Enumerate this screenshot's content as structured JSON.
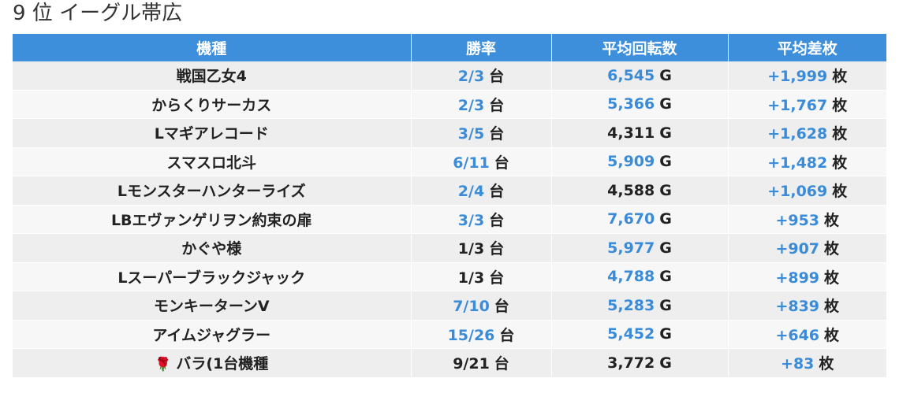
{
  "title": "9 位 イーグル帯広",
  "headers": [
    "機種",
    "勝率",
    "平均回転数",
    "平均差枚"
  ],
  "units": {
    "rate": "台",
    "spins": "G",
    "diff": "枚"
  },
  "rows": [
    {
      "machine": "戦国乙女4",
      "rate": "2/3",
      "rate_blue": true,
      "spins": "6,545",
      "spins_blue": true,
      "diff": "+1,999",
      "diff_blue": true
    },
    {
      "machine": "からくりサーカス",
      "rate": "2/3",
      "rate_blue": true,
      "spins": "5,366",
      "spins_blue": true,
      "diff": "+1,767",
      "diff_blue": true
    },
    {
      "machine": "Lマギアレコード",
      "rate": "3/5",
      "rate_blue": true,
      "spins": "4,311",
      "spins_blue": false,
      "diff": "+1,628",
      "diff_blue": true
    },
    {
      "machine": "スマスロ北斗",
      "rate": "6/11",
      "rate_blue": true,
      "spins": "5,909",
      "spins_blue": true,
      "diff": "+1,482",
      "diff_blue": true
    },
    {
      "machine": "Lモンスターハンターライズ",
      "rate": "2/4",
      "rate_blue": true,
      "spins": "4,588",
      "spins_blue": false,
      "diff": "+1,069",
      "diff_blue": true
    },
    {
      "machine": "LBエヴァンゲリヲン約束の扉",
      "rate": "3/3",
      "rate_blue": true,
      "spins": "7,670",
      "spins_blue": true,
      "diff": "+953",
      "diff_blue": true
    },
    {
      "machine": "かぐや様",
      "rate": "1/3",
      "rate_blue": false,
      "spins": "5,977",
      "spins_blue": true,
      "diff": "+907",
      "diff_blue": true
    },
    {
      "machine": "Lスーパーブラックジャック",
      "rate": "1/3",
      "rate_blue": false,
      "spins": "4,788",
      "spins_blue": true,
      "diff": "+899",
      "diff_blue": true
    },
    {
      "machine": "モンキーターンV",
      "rate": "7/10",
      "rate_blue": true,
      "spins": "5,283",
      "spins_blue": true,
      "diff": "+839",
      "diff_blue": true
    },
    {
      "machine": "アイムジャグラー",
      "rate": "15/26",
      "rate_blue": true,
      "spins": "5,452",
      "spins_blue": true,
      "diff": "+646",
      "diff_blue": true
    },
    {
      "machine": "バラ(1台機種",
      "rose_icon": "rose-icon",
      "rate": "9/21",
      "rate_blue": false,
      "spins": "3,772",
      "spins_blue": false,
      "diff": "+83",
      "diff_blue": true
    }
  ],
  "colors": {
    "header_bg": "#3d8fdc",
    "accent": "#3a8bd8",
    "row_odd": "#eeeeee",
    "row_even": "#f7f7f7"
  }
}
